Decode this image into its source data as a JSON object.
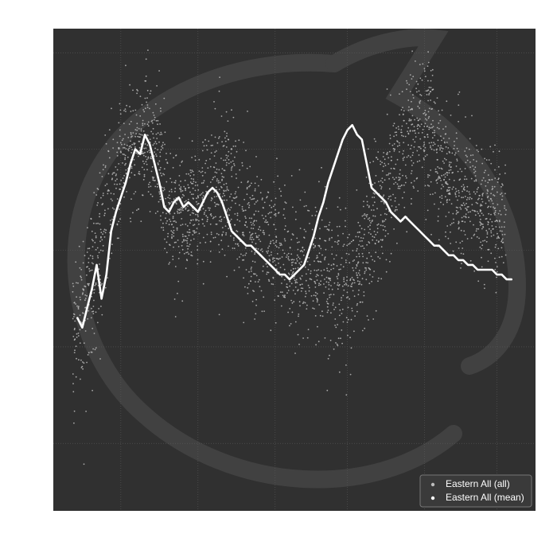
{
  "chart_data": {
    "type": "scatter",
    "title": "",
    "xlabel": "",
    "ylabel": "",
    "xlim": [
      0,
      100
    ],
    "ylim": [
      0,
      100
    ],
    "grid": true,
    "legend_position": "bottom-right",
    "colors": {
      "background": "#303030",
      "grid": "#5a5a5a",
      "all_points": "#bdbdbd",
      "mean_line": "#ffffff",
      "watermark": "#414141"
    },
    "legend": [
      "Eastern All (all)",
      "Eastern All (mean)"
    ],
    "series": [
      {
        "name": "Eastern All (all)",
        "kind": "scatter",
        "bands": [
          {
            "x": 4,
            "c": 41,
            "s": 6
          },
          {
            "x": 6,
            "c": 42,
            "s": 7
          },
          {
            "x": 8,
            "c": 48,
            "s": 8
          },
          {
            "x": 10,
            "c": 60,
            "s": 8
          },
          {
            "x": 12,
            "c": 66,
            "s": 7
          },
          {
            "x": 14,
            "c": 70,
            "s": 7
          },
          {
            "x": 16,
            "c": 74,
            "s": 7
          },
          {
            "x": 18,
            "c": 76,
            "s": 7
          },
          {
            "x": 20,
            "c": 77,
            "s": 7
          },
          {
            "x": 22,
            "c": 72,
            "s": 7
          },
          {
            "x": 24,
            "c": 63,
            "s": 7
          },
          {
            "x": 26,
            "c": 61,
            "s": 6
          },
          {
            "x": 28,
            "c": 61,
            "s": 6
          },
          {
            "x": 30,
            "c": 62,
            "s": 7
          },
          {
            "x": 32,
            "c": 65,
            "s": 7
          },
          {
            "x": 34,
            "c": 67,
            "s": 7
          },
          {
            "x": 36,
            "c": 67,
            "s": 7
          },
          {
            "x": 38,
            "c": 64,
            "s": 7
          },
          {
            "x": 40,
            "c": 60,
            "s": 7
          },
          {
            "x": 42,
            "c": 56,
            "s": 7
          },
          {
            "x": 44,
            "c": 55,
            "s": 7
          },
          {
            "x": 46,
            "c": 54,
            "s": 7
          },
          {
            "x": 48,
            "c": 53,
            "s": 7
          },
          {
            "x": 50,
            "c": 52,
            "s": 7
          },
          {
            "x": 52,
            "c": 51,
            "s": 7
          },
          {
            "x": 54,
            "c": 50,
            "s": 7
          },
          {
            "x": 56,
            "c": 49,
            "s": 7
          },
          {
            "x": 58,
            "c": 48,
            "s": 7
          },
          {
            "x": 60,
            "c": 47,
            "s": 7
          },
          {
            "x": 62,
            "c": 48,
            "s": 7
          },
          {
            "x": 64,
            "c": 52,
            "s": 7
          },
          {
            "x": 66,
            "c": 57,
            "s": 7
          },
          {
            "x": 68,
            "c": 63,
            "s": 7
          },
          {
            "x": 70,
            "c": 69,
            "s": 7
          },
          {
            "x": 72,
            "c": 74,
            "s": 7
          },
          {
            "x": 74,
            "c": 78,
            "s": 7
          },
          {
            "x": 76,
            "c": 81,
            "s": 7
          },
          {
            "x": 78,
            "c": 80,
            "s": 7
          },
          {
            "x": 80,
            "c": 71,
            "s": 7
          },
          {
            "x": 82,
            "c": 68,
            "s": 7
          },
          {
            "x": 84,
            "c": 66,
            "s": 7
          },
          {
            "x": 86,
            "c": 65,
            "s": 7
          },
          {
            "x": 88,
            "c": 64,
            "s": 7
          },
          {
            "x": 90,
            "c": 62,
            "s": 7
          },
          {
            "x": 92,
            "c": 61,
            "s": 7
          },
          {
            "x": 94,
            "c": 60,
            "s": 7
          }
        ]
      },
      {
        "name": "Eastern All (mean)",
        "kind": "line",
        "x": [
          5,
          6,
          7,
          8,
          9,
          10,
          11,
          12,
          13,
          14,
          15,
          16,
          17,
          18,
          19,
          20,
          21,
          22,
          23,
          24,
          25,
          26,
          27,
          28,
          29,
          30,
          31,
          32,
          33,
          34,
          35,
          36,
          37,
          38,
          39,
          40,
          41,
          42,
          43,
          44,
          45,
          46,
          47,
          48,
          49,
          50,
          51,
          52,
          53,
          54,
          55,
          56,
          57,
          58,
          59,
          60,
          61,
          62,
          63,
          64,
          65,
          66,
          67,
          68,
          69,
          70,
          71,
          72,
          73,
          74,
          75,
          76,
          77,
          78,
          79,
          80,
          81,
          82,
          83,
          84,
          85,
          86,
          87,
          88,
          89,
          90,
          91,
          92,
          93,
          94,
          95
        ],
        "y": [
          40,
          38,
          42,
          46,
          51,
          44,
          49,
          58,
          62,
          65,
          68,
          72,
          75,
          74,
          78,
          76,
          72,
          68,
          63,
          62,
          64,
          65,
          63,
          64,
          63,
          62,
          64,
          66,
          67,
          66,
          64,
          61,
          58,
          57,
          56,
          55,
          55,
          54,
          53,
          52,
          51,
          50,
          49,
          49,
          48,
          49,
          50,
          51,
          54,
          57,
          61,
          64,
          68,
          71,
          74,
          77,
          79,
          80,
          78,
          77,
          72,
          67,
          66,
          65,
          64,
          62,
          61,
          60,
          61,
          60,
          59,
          58,
          57,
          56,
          55,
          55,
          54,
          53,
          53,
          52,
          52,
          51,
          51,
          50,
          50,
          50,
          50,
          49,
          49,
          48,
          48
        ]
      }
    ]
  }
}
